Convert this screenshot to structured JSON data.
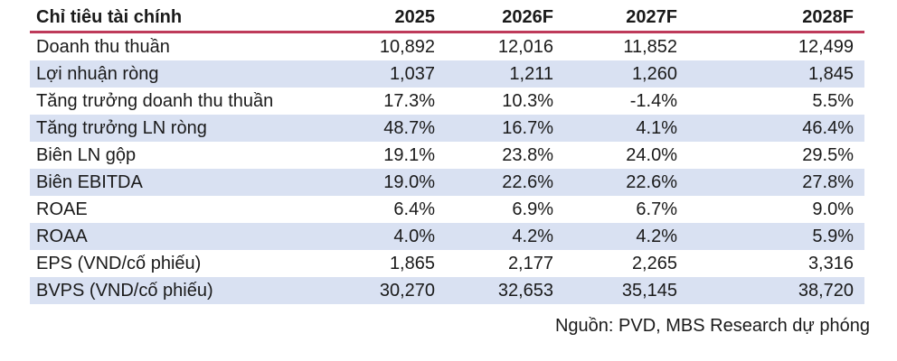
{
  "table": {
    "header": {
      "label": "Chỉ tiêu tài chính",
      "columns": [
        "2025",
        "2026F",
        "2027F",
        "2028F"
      ]
    },
    "rows": [
      {
        "label": "Doanh thu thuần",
        "values": [
          "10,892",
          "12,016",
          "11,852",
          "12,499"
        ]
      },
      {
        "label": "Lợi nhuận ròng",
        "values": [
          "1,037",
          "1,211",
          "1,260",
          "1,845"
        ]
      },
      {
        "label": "Tăng trưởng doanh thu thuần",
        "values": [
          "17.3%",
          "10.3%",
          "-1.4%",
          "5.5%"
        ]
      },
      {
        "label": "Tăng trưởng LN ròng",
        "values": [
          "48.7%",
          "16.7%",
          "4.1%",
          "46.4%"
        ]
      },
      {
        "label": "Biên LN gộp",
        "values": [
          "19.1%",
          "23.8%",
          "24.0%",
          "29.5%"
        ]
      },
      {
        "label": "Biên EBITDA",
        "values": [
          "19.0%",
          "22.6%",
          "22.6%",
          "27.8%"
        ]
      },
      {
        "label": "ROAE",
        "values": [
          "6.4%",
          "6.9%",
          "6.7%",
          "9.0%"
        ]
      },
      {
        "label": "ROAA",
        "values": [
          "4.0%",
          "4.2%",
          "4.2%",
          "5.9%"
        ]
      },
      {
        "label": "EPS (VND/cổ phiếu)",
        "values": [
          "1,865",
          "2,177",
          "2,265",
          "3,316"
        ]
      },
      {
        "label": "BVPS (VND/cổ phiếu)",
        "values": [
          "30,270",
          "32,653",
          "35,145",
          "38,720"
        ]
      }
    ]
  },
  "footer": {
    "source_note": "Nguồn: PVD, MBS Research dự phóng"
  },
  "colors": {
    "accent_line": "#BE3A5A",
    "row_shade": "#D9E1F2",
    "text": "#1A1A1A"
  },
  "chart_data": {
    "type": "table",
    "title": "Chỉ tiêu tài chính",
    "columns": [
      "Chỉ tiêu tài chính",
      "2025",
      "2026F",
      "2027F",
      "2028F"
    ],
    "series": [
      {
        "name": "Doanh thu thuần",
        "values": [
          10892,
          12016,
          11852,
          12499
        ]
      },
      {
        "name": "Lợi nhuận ròng",
        "values": [
          1037,
          1211,
          1260,
          1845
        ]
      },
      {
        "name": "Tăng trưởng doanh thu thuần",
        "values": [
          "17.3%",
          "10.3%",
          "-1.4%",
          "5.5%"
        ]
      },
      {
        "name": "Tăng trưởng LN ròng",
        "values": [
          "48.7%",
          "16.7%",
          "4.1%",
          "46.4%"
        ]
      },
      {
        "name": "Biên LN gộp",
        "values": [
          "19.1%",
          "23.8%",
          "24.0%",
          "29.5%"
        ]
      },
      {
        "name": "Biên EBITDA",
        "values": [
          "19.0%",
          "22.6%",
          "22.6%",
          "27.8%"
        ]
      },
      {
        "name": "ROAE",
        "values": [
          "6.4%",
          "6.9%",
          "6.7%",
          "9.0%"
        ]
      },
      {
        "name": "ROAA",
        "values": [
          "4.0%",
          "4.2%",
          "4.2%",
          "5.9%"
        ]
      },
      {
        "name": "EPS (VND/cổ phiếu)",
        "values": [
          1865,
          2177,
          2265,
          3316
        ]
      },
      {
        "name": "BVPS (VND/cổ phiếu)",
        "values": [
          30270,
          32653,
          35145,
          38720
        ]
      }
    ],
    "source": "Nguồn: PVD, MBS Research dự phóng"
  }
}
